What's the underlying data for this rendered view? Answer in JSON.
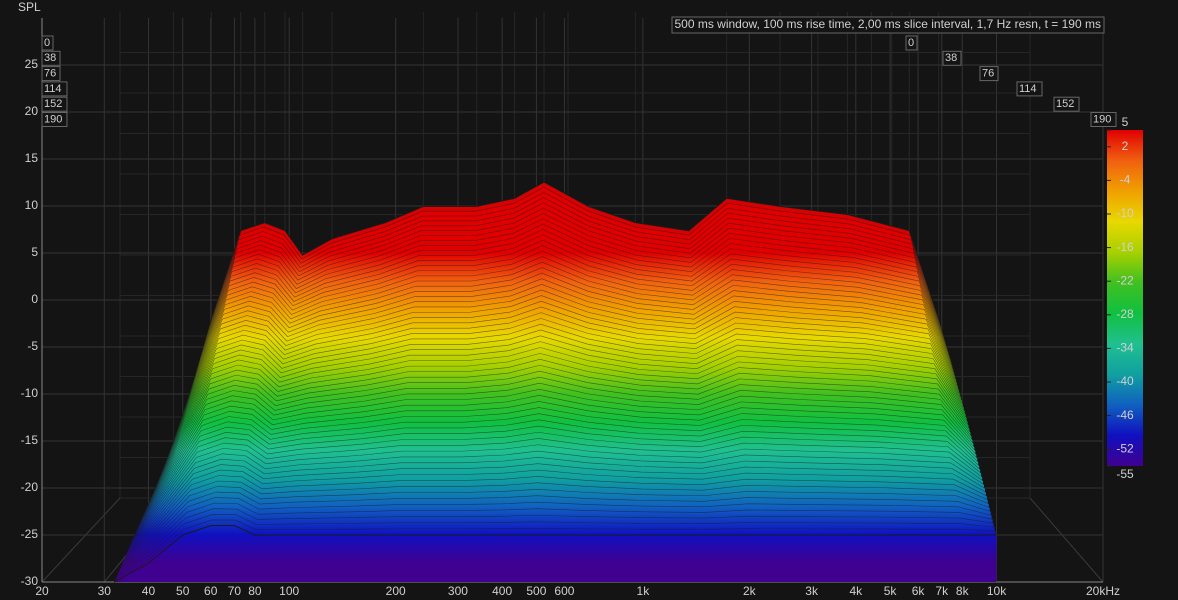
{
  "chart_data": {
    "type": "waterfall",
    "annotation": "500 ms window, 100 ms rise time, 2,00 ms slice interval, 1,7 Hz resn, t = 190 ms",
    "y_label": "SPL",
    "x_log": true,
    "xlim": [
      20,
      20000
    ],
    "xticks": [
      20,
      30,
      40,
      50,
      60,
      70,
      80,
      100,
      200,
      300,
      400,
      500,
      600,
      {
        "value": 1000,
        "label": "1k"
      },
      {
        "value": 2000,
        "label": "2k"
      },
      {
        "value": 3000,
        "label": "3k"
      },
      {
        "value": 4000,
        "label": "4k"
      },
      {
        "value": 5000,
        "label": "5k"
      },
      {
        "value": 6000,
        "label": "6k"
      },
      {
        "value": 7000,
        "label": "7k"
      },
      {
        "value": 8000,
        "label": "8k"
      },
      {
        "value": 10000,
        "label": "10k"
      },
      {
        "value": 20000,
        "label": "20kHz"
      }
    ],
    "ylim": [
      -30,
      30
    ],
    "yticks": [
      -30,
      -25,
      -20,
      -15,
      -10,
      -5,
      0,
      5,
      10,
      15,
      20,
      25
    ],
    "slices": [
      0,
      38,
      76,
      114,
      152,
      190
    ],
    "color_scale": {
      "lim": [
        -55,
        5
      ],
      "ticks": [
        5,
        2,
        -4,
        -10,
        -16,
        -22,
        -28,
        -34,
        -40,
        -46,
        -52,
        -55
      ],
      "colors": [
        "#e00000",
        "#f06010",
        "#f0a000",
        "#e8d800",
        "#a8d000",
        "#40c020",
        "#10c040",
        "#20c090",
        "#10a0a0",
        "#1060c0",
        "#1010c0",
        "#400090"
      ]
    },
    "x": [
      32,
      40,
      50,
      60,
      70,
      80,
      100,
      150,
      200,
      300,
      400,
      500,
      700,
      1000,
      1500,
      2000,
      3000,
      5000,
      8000,
      10000
    ],
    "series": [
      {
        "name": "0",
        "values": [
          -22,
          -8,
          3,
          4,
          3,
          0,
          2,
          4,
          6,
          6,
          7,
          9,
          6,
          4,
          3,
          7,
          6,
          5,
          3,
          -8
        ]
      },
      {
        "name": "190",
        "values": [
          -30,
          -28,
          -25,
          -24,
          -24,
          -25,
          -25,
          -25,
          -25,
          -25,
          -25,
          -25,
          -25,
          -25,
          -25,
          -25,
          -25,
          -25,
          -25,
          -25
        ]
      }
    ]
  }
}
